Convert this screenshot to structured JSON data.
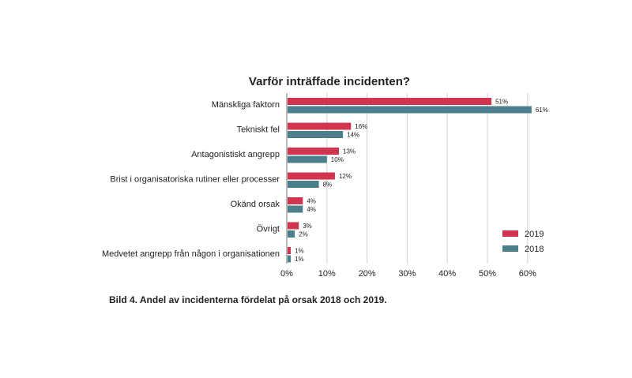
{
  "chart_data": {
    "type": "bar",
    "orientation": "horizontal",
    "title": "Varför inträffade incidenten?",
    "categories": [
      "Mänskliga faktorn",
      "Tekniskt fel",
      "Antagonistiskt angrepp",
      "Brist i organisatoriska rutiner eller processer",
      "Okänd orsak",
      "Övrigt",
      "Medvetet angrepp från någon i organisationen"
    ],
    "series": [
      {
        "name": "2019",
        "color": "#d1344f",
        "values": [
          51,
          16,
          13,
          12,
          4,
          3,
          1
        ],
        "labels": [
          "51%",
          "16%",
          "13%",
          "12%",
          "4%",
          "3%",
          "1%"
        ]
      },
      {
        "name": "2018",
        "color": "#4a7f8b",
        "values": [
          61,
          14,
          10,
          8,
          4,
          2,
          1
        ],
        "labels": [
          "61%",
          "14%",
          "10%",
          "8%",
          "4%",
          "2%",
          "1%"
        ]
      }
    ],
    "xlim": [
      0,
      60
    ],
    "xticks": [
      0,
      10,
      20,
      30,
      40,
      50,
      60
    ],
    "xtick_labels": [
      "0%",
      "10%",
      "20%",
      "30%",
      "40%",
      "50%",
      "60%"
    ],
    "grid": true,
    "legend": "bottom-right"
  },
  "caption": "Bild 4. Andel av incidenterna fördelat på orsak 2018 och 2019."
}
